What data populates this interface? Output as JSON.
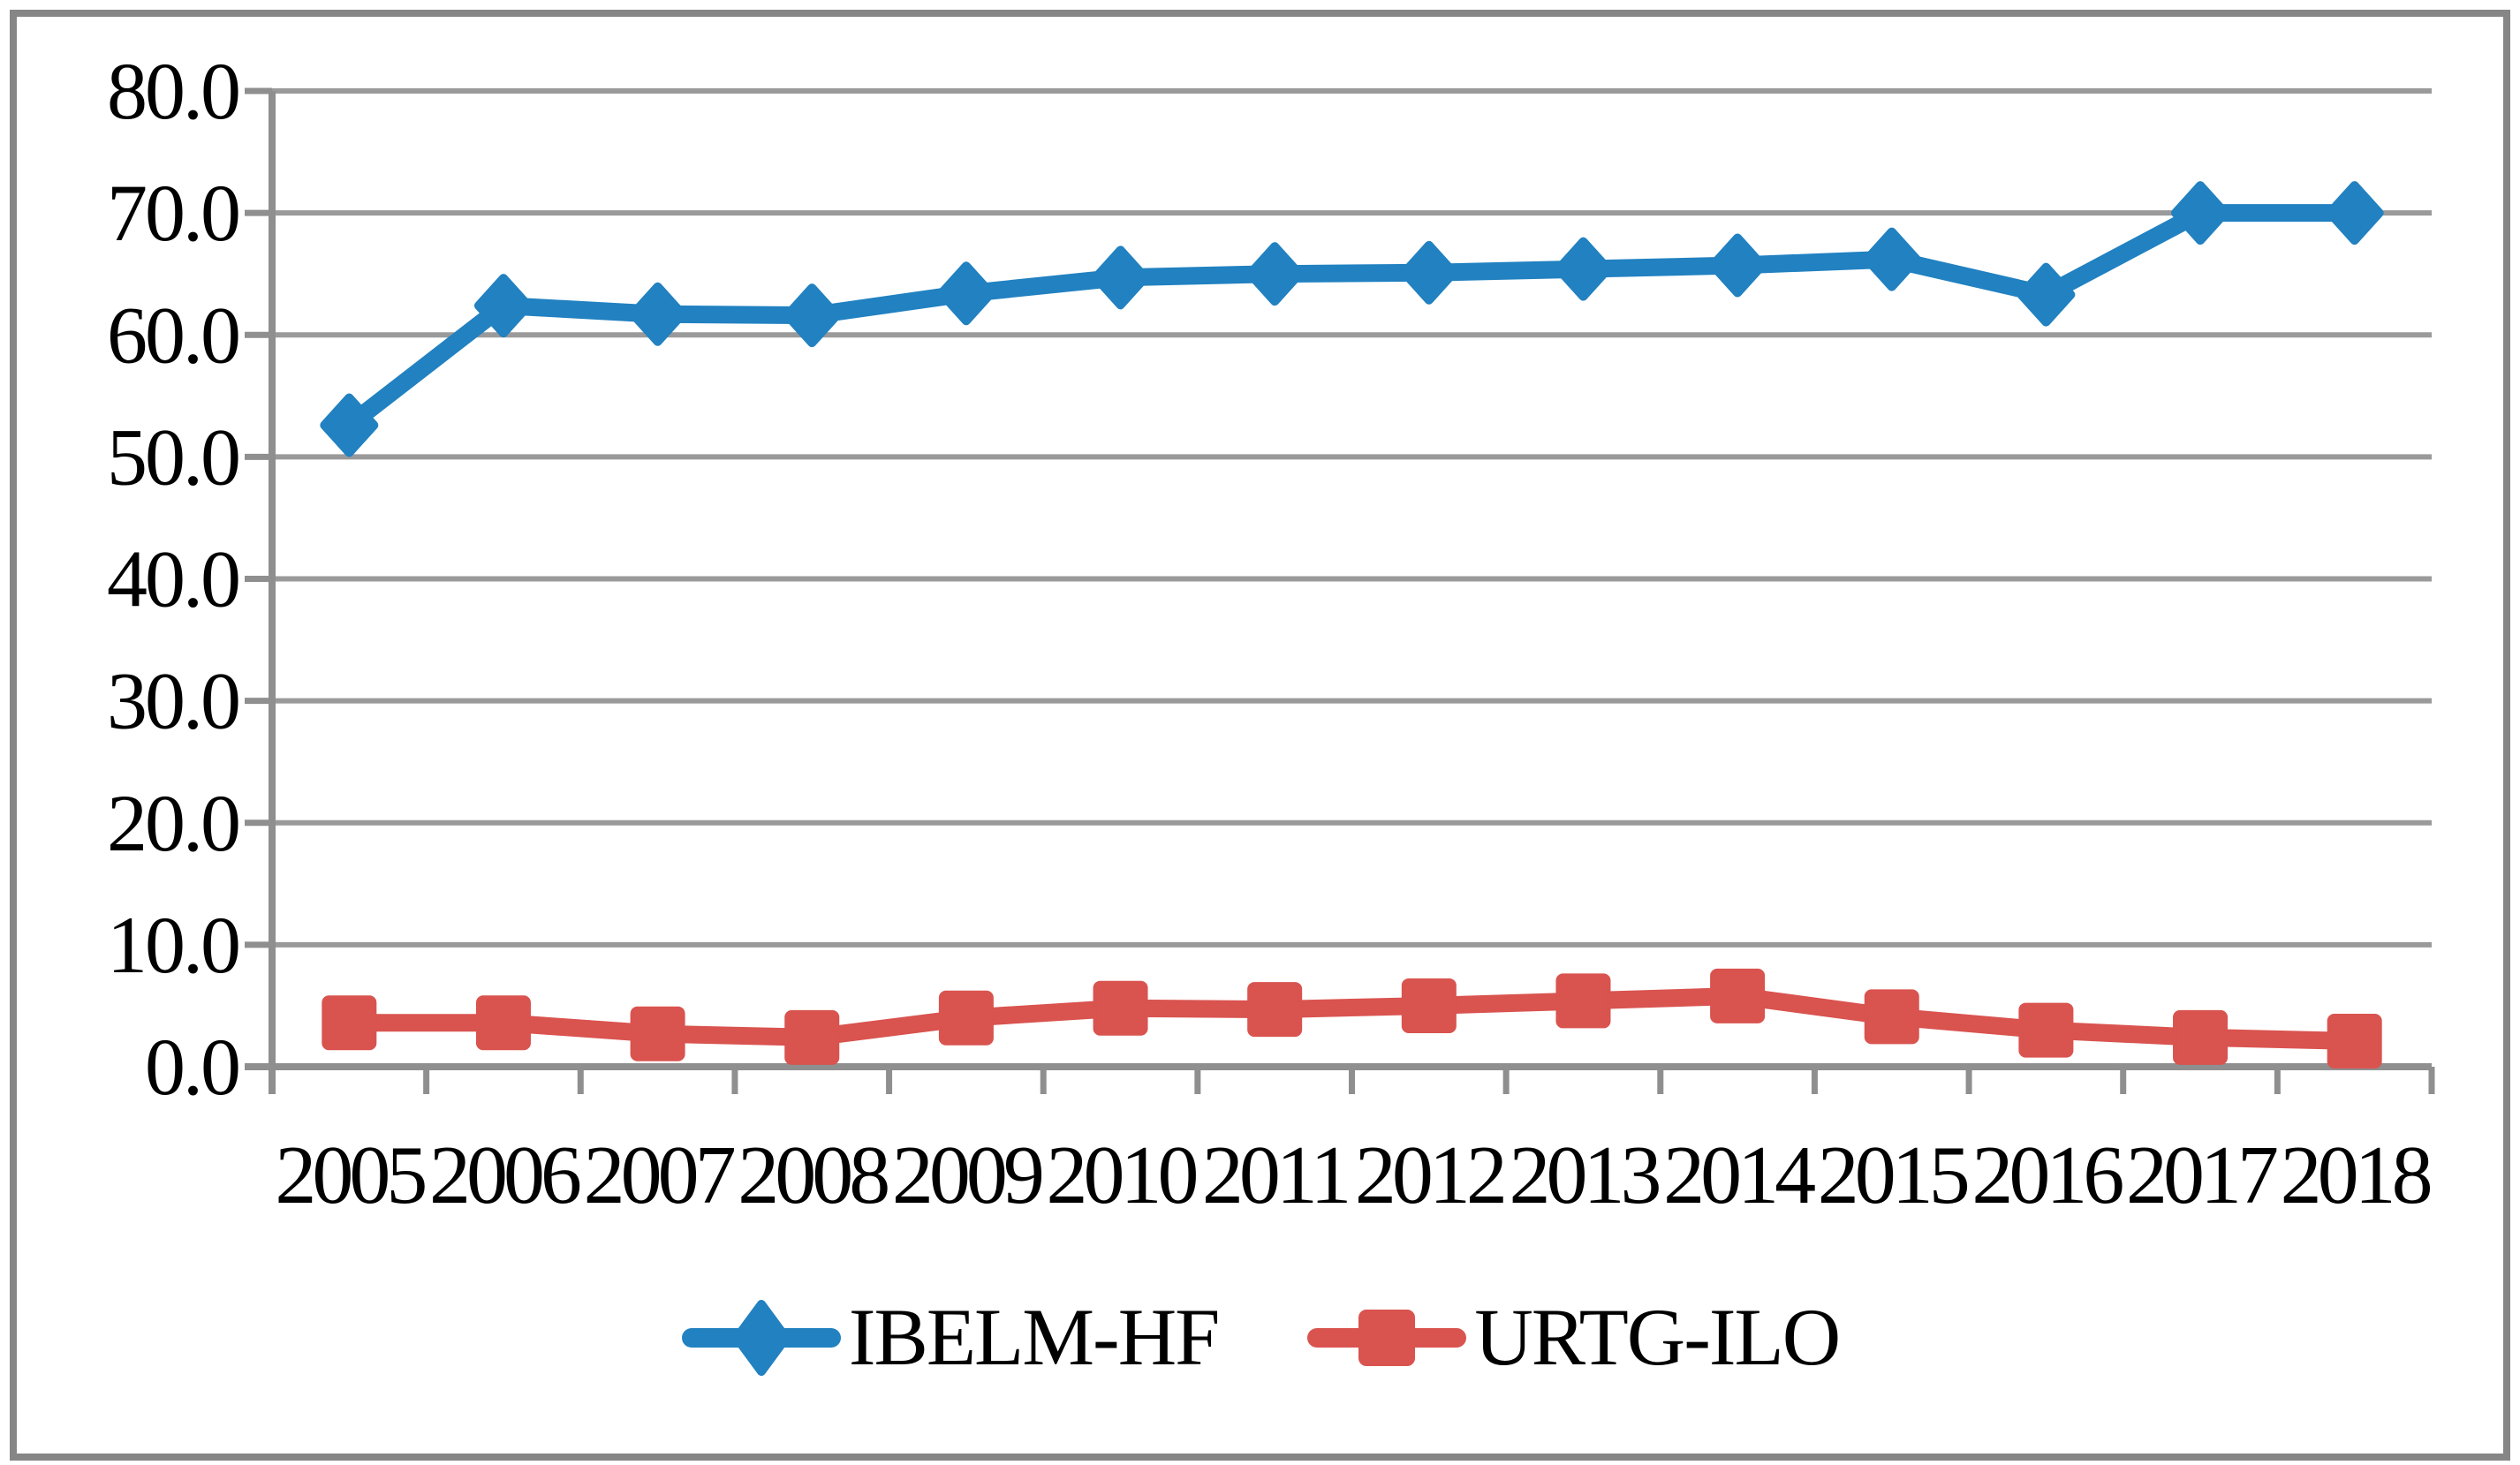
{
  "chart_data": {
    "type": "line",
    "categories": [
      "2005",
      "2006",
      "2007",
      "2008",
      "2009",
      "2010",
      "2011",
      "2012",
      "2013",
      "2014",
      "2015",
      "2016",
      "2017",
      "2018"
    ],
    "series": [
      {
        "name": "IBELM-HF",
        "marker": "diamond",
        "color": "#2181C1",
        "values": [
          52.6,
          62.4,
          61.7,
          61.6,
          63.4,
          64.7,
          65.0,
          65.1,
          65.4,
          65.7,
          66.2,
          63.3,
          70.0,
          70.0
        ]
      },
      {
        "name": "URTG-ILO",
        "marker": "square",
        "color": "#D9534F",
        "values": [
          3.6,
          3.6,
          2.7,
          2.4,
          4.0,
          4.8,
          4.7,
          5.0,
          5.4,
          5.8,
          4.1,
          3.0,
          2.4,
          2.1
        ]
      }
    ],
    "title": "",
    "xlabel": "",
    "ylabel": "",
    "ylim": [
      0,
      80
    ],
    "ytick_step": 10,
    "ytick_labels": [
      "0.0",
      "10.0",
      "20.0",
      "30.0",
      "40.0",
      "50.0",
      "60.0",
      "70.0",
      "80.0"
    ],
    "grid": "horizontal-only",
    "legend_position": "bottom-center",
    "colors": {
      "gridline": "#9A9A9A",
      "axis": "#8F8F8F",
      "figure_border": "#868686",
      "text": "#000000",
      "background": "#FFFFFF"
    }
  },
  "legend": {
    "items": [
      {
        "label": "IBELM-HF"
      },
      {
        "label": "URTG-ILO"
      }
    ]
  }
}
